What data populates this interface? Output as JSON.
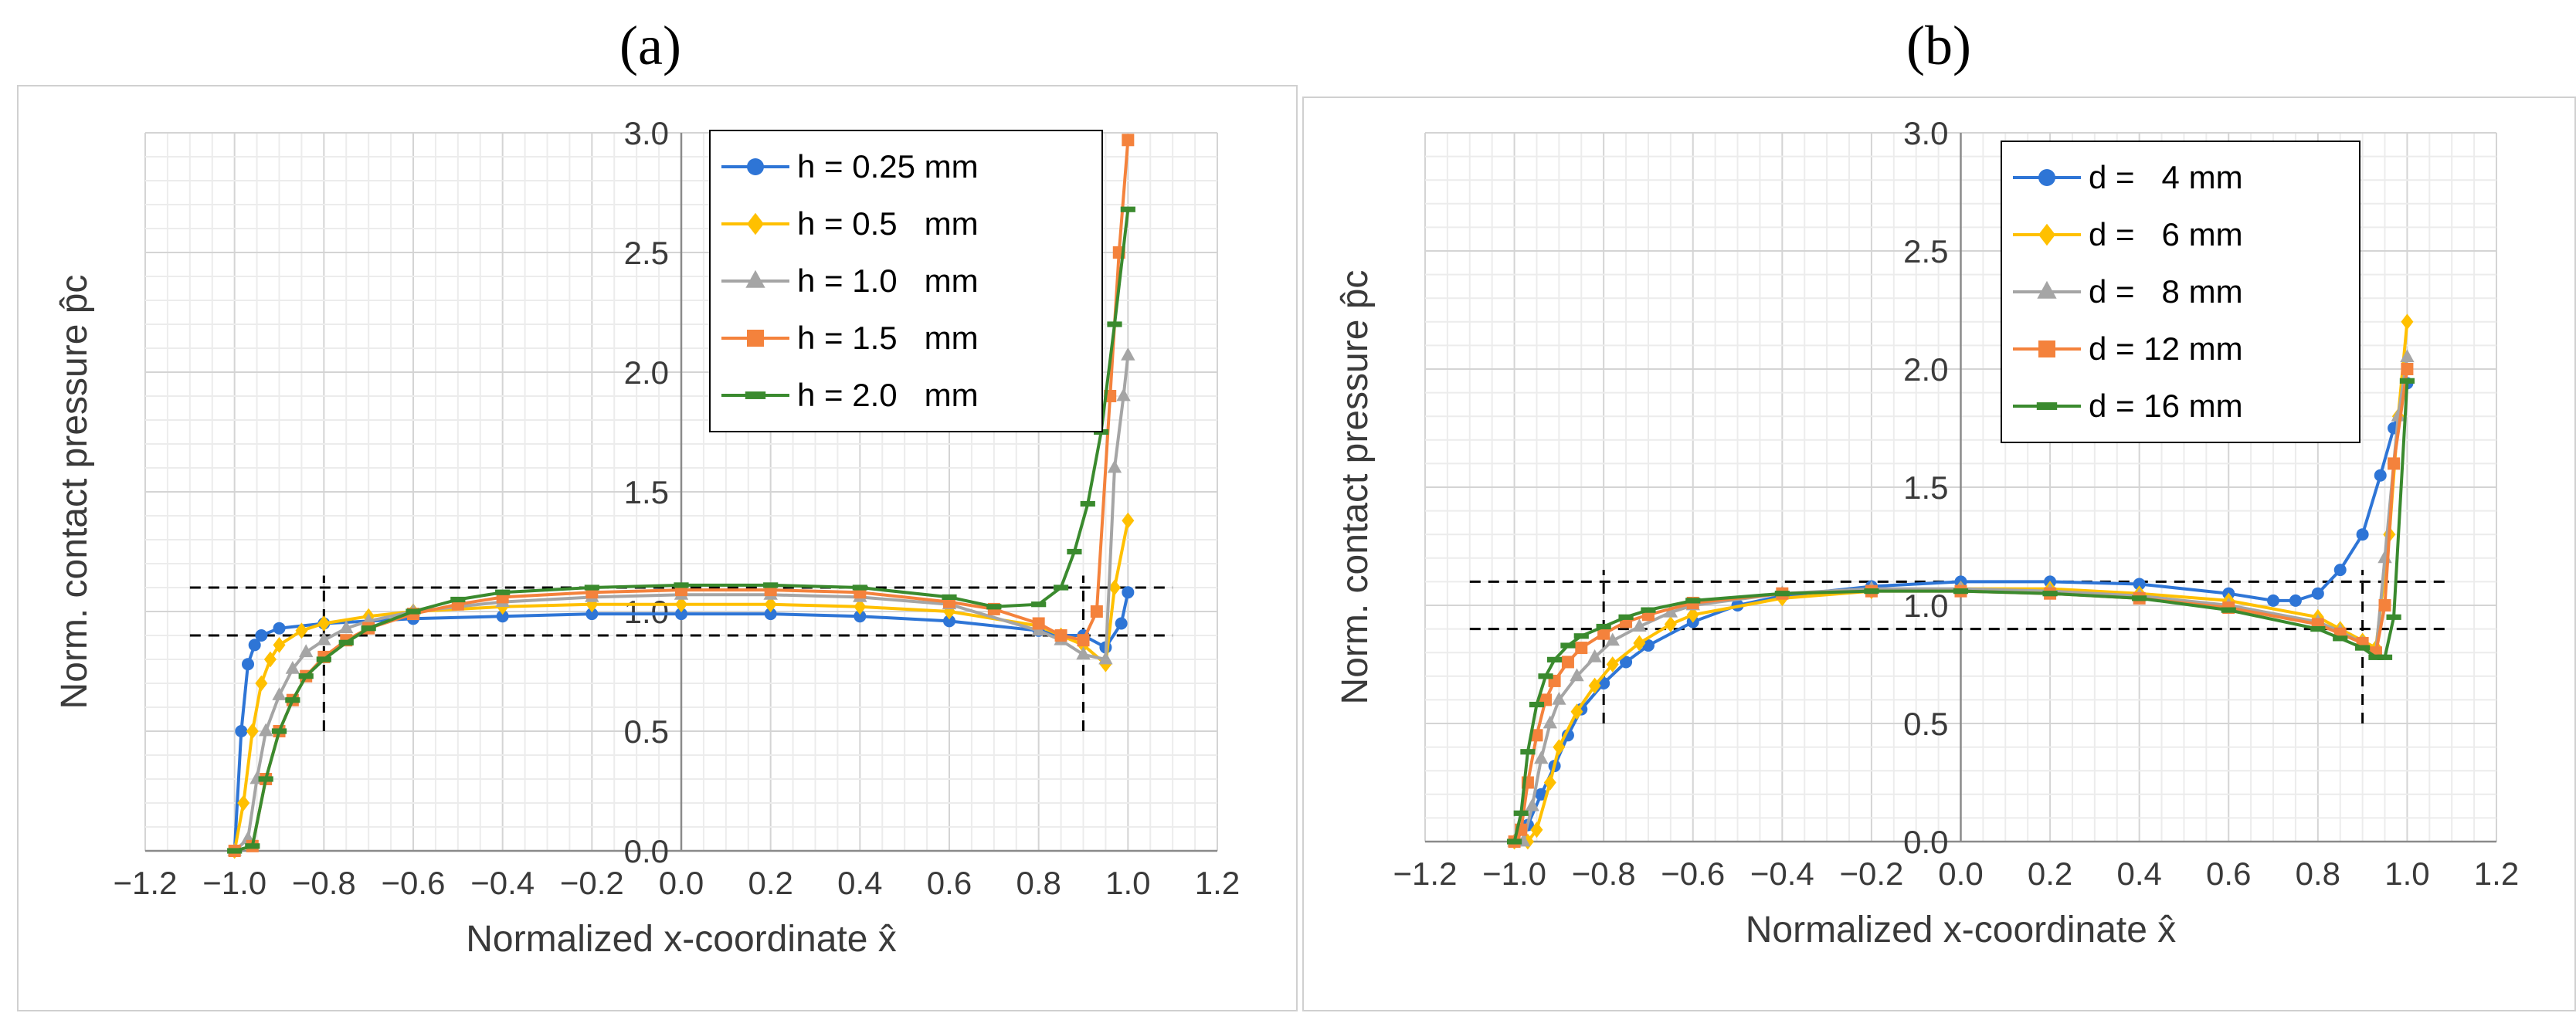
{
  "figure": {
    "panel_a_label": "(a)",
    "panel_b_label": "(b)"
  },
  "chart_data": [
    {
      "type": "line",
      "panel": "a",
      "title": "(a)",
      "xlabel": "Normalized x-coordinate x̂",
      "ylabel": "Norm. contact pressure p̂c",
      "xlim": [
        -1.2,
        1.2
      ],
      "ylim": [
        0.0,
        3.0
      ],
      "xticks": [
        -1.2,
        -1.0,
        -0.8,
        -0.6,
        -0.4,
        -0.2,
        0.0,
        0.2,
        0.4,
        0.6,
        0.8,
        1.0,
        1.2
      ],
      "xtick_labels": [
        "−1.2",
        "−1.0",
        "−0.8",
        "−0.6",
        "−0.4",
        "−0.2",
        "0.0",
        "0.2",
        "0.4",
        "0.6",
        "0.8",
        "1.0",
        "1.2"
      ],
      "yticks": [
        0.0,
        0.5,
        1.0,
        1.5,
        2.0,
        2.5,
        3.0
      ],
      "ytick_labels": [
        "0.0",
        "0.5",
        "1.0",
        "1.5",
        "2.0",
        "2.5",
        "3.0"
      ],
      "grid": true,
      "legend_position": "top-right",
      "reference_lines": {
        "horizontal": [
          0.9,
          1.1
        ],
        "vertical": [
          -0.8,
          0.9
        ],
        "vertical_range": [
          0.5,
          1.15
        ]
      },
      "series": [
        {
          "name": "h = 0.25 mm",
          "color": "#2e75d6",
          "marker": "circle",
          "x": [
            -1.0,
            -0.985,
            -0.97,
            -0.955,
            -0.94,
            -0.9,
            -0.8,
            -0.6,
            -0.4,
            -0.2,
            0.0,
            0.2,
            0.4,
            0.6,
            0.8,
            0.85,
            0.9,
            0.95,
            0.985,
            1.0
          ],
          "y": [
            0.0,
            0.5,
            0.78,
            0.86,
            0.9,
            0.93,
            0.95,
            0.97,
            0.98,
            0.99,
            0.99,
            0.99,
            0.98,
            0.96,
            0.92,
            0.9,
            0.9,
            0.85,
            0.95,
            1.08
          ]
        },
        {
          "name": "h = 0.5   mm",
          "color": "#ffc000",
          "marker": "diamond",
          "x": [
            -1.0,
            -0.98,
            -0.96,
            -0.94,
            -0.92,
            -0.9,
            -0.85,
            -0.8,
            -0.7,
            -0.6,
            -0.4,
            -0.2,
            0.0,
            0.2,
            0.4,
            0.6,
            0.8,
            0.85,
            0.9,
            0.95,
            0.97,
            1.0
          ],
          "y": [
            0.0,
            0.2,
            0.5,
            0.7,
            0.8,
            0.86,
            0.92,
            0.95,
            0.98,
            1.0,
            1.02,
            1.03,
            1.03,
            1.03,
            1.02,
            1.0,
            0.94,
            0.9,
            0.86,
            0.78,
            1.1,
            1.38
          ]
        },
        {
          "name": "h = 1.0   mm",
          "color": "#a5a5a5",
          "marker": "triangle",
          "x": [
            -1.0,
            -0.97,
            -0.95,
            -0.93,
            -0.9,
            -0.87,
            -0.84,
            -0.8,
            -0.75,
            -0.7,
            -0.6,
            -0.4,
            -0.2,
            0.0,
            0.2,
            0.4,
            0.6,
            0.8,
            0.85,
            0.9,
            0.95,
            0.97,
            0.99,
            1.0
          ],
          "y": [
            0.0,
            0.05,
            0.3,
            0.5,
            0.65,
            0.76,
            0.83,
            0.88,
            0.93,
            0.96,
            1.0,
            1.04,
            1.06,
            1.07,
            1.07,
            1.06,
            1.03,
            0.92,
            0.88,
            0.82,
            0.8,
            1.6,
            1.9,
            2.07
          ]
        },
        {
          "name": "h = 1.5   mm",
          "color": "#f4823c",
          "marker": "square",
          "x": [
            -1.0,
            -0.96,
            -0.93,
            -0.9,
            -0.87,
            -0.84,
            -0.8,
            -0.75,
            -0.7,
            -0.6,
            -0.5,
            -0.4,
            -0.2,
            0.0,
            0.2,
            0.4,
            0.6,
            0.7,
            0.8,
            0.85,
            0.9,
            0.93,
            0.96,
            0.98,
            1.0
          ],
          "y": [
            0.0,
            0.02,
            0.3,
            0.5,
            0.63,
            0.73,
            0.81,
            0.88,
            0.93,
            0.99,
            1.03,
            1.06,
            1.08,
            1.09,
            1.09,
            1.08,
            1.04,
            1.01,
            0.95,
            0.9,
            0.88,
            1.0,
            1.9,
            2.5,
            2.97
          ]
        },
        {
          "name": "h = 2.0   mm",
          "color": "#3a8a2e",
          "marker": "dash",
          "x": [
            -1.0,
            -0.96,
            -0.93,
            -0.9,
            -0.87,
            -0.84,
            -0.8,
            -0.75,
            -0.7,
            -0.6,
            -0.5,
            -0.4,
            -0.2,
            0.0,
            0.2,
            0.4,
            0.6,
            0.7,
            0.8,
            0.85,
            0.88,
            0.91,
            0.94,
            0.97,
            1.0
          ],
          "y": [
            0.0,
            0.02,
            0.3,
            0.5,
            0.63,
            0.73,
            0.8,
            0.87,
            0.93,
            1.0,
            1.05,
            1.08,
            1.1,
            1.11,
            1.11,
            1.1,
            1.06,
            1.02,
            1.03,
            1.1,
            1.25,
            1.45,
            1.75,
            2.2,
            2.68
          ]
        }
      ]
    },
    {
      "type": "line",
      "panel": "b",
      "title": "(b)",
      "xlabel": "Normalized x-coordinate x̂",
      "ylabel": "Norm. contact pressure p̂c",
      "xlim": [
        -1.2,
        1.2
      ],
      "ylim": [
        0.0,
        3.0
      ],
      "xticks": [
        -1.2,
        -1.0,
        -0.8,
        -0.6,
        -0.4,
        -0.2,
        0.0,
        0.2,
        0.4,
        0.6,
        0.8,
        1.0,
        1.2
      ],
      "xtick_labels": [
        "−1.2",
        "−1.0",
        "−0.8",
        "−0.6",
        "−0.4",
        "−0.2",
        "0.0",
        "0.2",
        "0.4",
        "0.6",
        "0.8",
        "1.0",
        "1.2"
      ],
      "yticks": [
        0.0,
        0.5,
        1.0,
        1.5,
        2.0,
        2.5,
        3.0
      ],
      "ytick_labels": [
        "0.0",
        "0.5",
        "1.0",
        "1.5",
        "2.0",
        "2.5",
        "3.0"
      ],
      "grid": true,
      "legend_position": "top-right",
      "reference_lines": {
        "horizontal": [
          0.9,
          1.1
        ],
        "vertical": [
          -0.8,
          0.9
        ],
        "vertical_range": [
          0.5,
          1.15
        ]
      },
      "series": [
        {
          "name": "d =   4 mm",
          "color": "#2e75d6",
          "marker": "circle",
          "x": [
            -1.0,
            -0.97,
            -0.94,
            -0.91,
            -0.88,
            -0.85,
            -0.8,
            -0.75,
            -0.7,
            -0.6,
            -0.5,
            -0.4,
            -0.2,
            0.0,
            0.2,
            0.4,
            0.6,
            0.7,
            0.75,
            0.8,
            0.85,
            0.9,
            0.94,
            0.97,
            1.0
          ],
          "y": [
            0.0,
            0.07,
            0.2,
            0.32,
            0.45,
            0.56,
            0.67,
            0.76,
            0.83,
            0.93,
            1.0,
            1.04,
            1.08,
            1.1,
            1.1,
            1.09,
            1.05,
            1.02,
            1.02,
            1.05,
            1.15,
            1.3,
            1.55,
            1.75,
            1.94
          ]
        },
        {
          "name": "d =   6 mm",
          "color": "#ffc000",
          "marker": "diamond",
          "x": [
            -1.0,
            -0.97,
            -0.95,
            -0.92,
            -0.9,
            -0.86,
            -0.82,
            -0.78,
            -0.72,
            -0.65,
            -0.6,
            -0.4,
            -0.2,
            0.0,
            0.2,
            0.4,
            0.6,
            0.8,
            0.85,
            0.9,
            0.93,
            0.96,
            0.98,
            1.0
          ],
          "y": [
            0.0,
            0.0,
            0.05,
            0.25,
            0.4,
            0.55,
            0.66,
            0.75,
            0.84,
            0.92,
            0.96,
            1.03,
            1.06,
            1.07,
            1.07,
            1.05,
            1.02,
            0.95,
            0.9,
            0.85,
            0.82,
            1.3,
            1.8,
            2.2
          ]
        },
        {
          "name": "d =   8 mm",
          "color": "#a5a5a5",
          "marker": "triangle",
          "x": [
            -1.0,
            -0.98,
            -0.96,
            -0.94,
            -0.92,
            -0.9,
            -0.86,
            -0.82,
            -0.78,
            -0.72,
            -0.65,
            -0.6,
            -0.4,
            -0.2,
            0.0,
            0.2,
            0.4,
            0.6,
            0.8,
            0.85,
            0.9,
            0.93,
            0.95,
            0.98,
            1.0
          ],
          "y": [
            0.0,
            0.0,
            0.15,
            0.35,
            0.5,
            0.6,
            0.7,
            0.78,
            0.85,
            0.91,
            0.97,
            1.0,
            1.05,
            1.07,
            1.07,
            1.06,
            1.04,
            1.0,
            0.93,
            0.89,
            0.84,
            0.8,
            1.2,
            1.8,
            2.05
          ]
        },
        {
          "name": "d = 12 mm",
          "color": "#f4823c",
          "marker": "square",
          "x": [
            -1.0,
            -0.985,
            -0.97,
            -0.95,
            -0.93,
            -0.91,
            -0.88,
            -0.85,
            -0.8,
            -0.75,
            -0.7,
            -0.6,
            -0.4,
            -0.2,
            0.0,
            0.2,
            0.4,
            0.6,
            0.8,
            0.85,
            0.9,
            0.93,
            0.95,
            0.97,
            1.0
          ],
          "y": [
            0.0,
            0.05,
            0.25,
            0.45,
            0.6,
            0.68,
            0.76,
            0.82,
            0.88,
            0.93,
            0.96,
            1.01,
            1.05,
            1.06,
            1.06,
            1.05,
            1.03,
            0.99,
            0.92,
            0.88,
            0.84,
            0.8,
            1.0,
            1.6,
            2.0
          ]
        },
        {
          "name": "d = 16 mm",
          "color": "#3a8a2e",
          "marker": "dash",
          "x": [
            -1.0,
            -0.985,
            -0.97,
            -0.95,
            -0.93,
            -0.91,
            -0.88,
            -0.85,
            -0.8,
            -0.75,
            -0.7,
            -0.6,
            -0.4,
            -0.2,
            0.0,
            0.2,
            0.4,
            0.6,
            0.8,
            0.85,
            0.9,
            0.93,
            0.95,
            0.97,
            1.0
          ],
          "y": [
            0.0,
            0.12,
            0.38,
            0.58,
            0.7,
            0.77,
            0.83,
            0.87,
            0.91,
            0.95,
            0.98,
            1.02,
            1.05,
            1.06,
            1.06,
            1.05,
            1.03,
            0.98,
            0.9,
            0.86,
            0.82,
            0.78,
            0.78,
            0.95,
            1.95
          ]
        }
      ]
    }
  ]
}
